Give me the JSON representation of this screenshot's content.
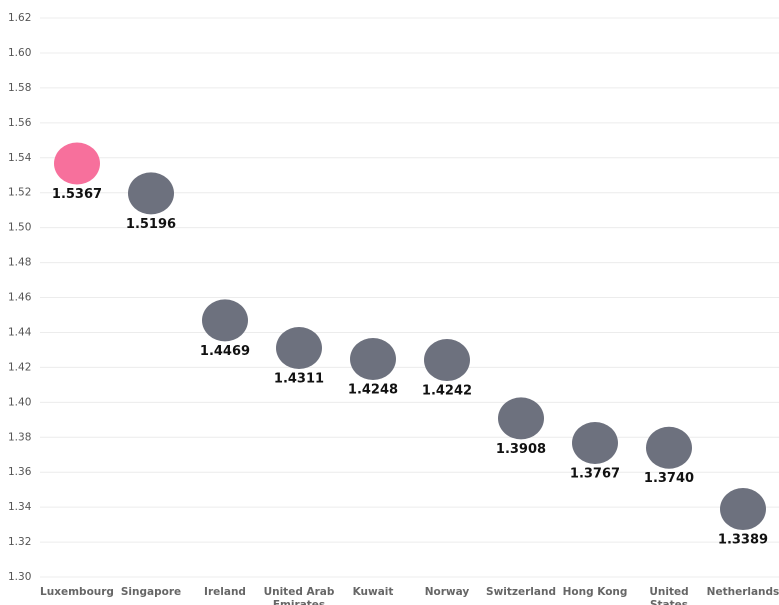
{
  "chart_data": {
    "type": "dot",
    "categories": [
      "Luxembourg",
      "Singapore",
      "Ireland",
      "United Arab Emirates",
      "Kuwait",
      "Norway",
      "Switzerland",
      "Hong Kong",
      "United States",
      "Netherlands"
    ],
    "values": [
      1.5367,
      1.5196,
      1.4469,
      1.4311,
      1.4248,
      1.4242,
      1.3908,
      1.3767,
      1.374,
      1.3389
    ],
    "value_labels": [
      "1.5367",
      "1.5196",
      "1.4469",
      "1.4311",
      "1.4248",
      "1.4242",
      "1.3908",
      "1.3767",
      "1.3740",
      "1.3389"
    ],
    "colors": [
      "#f7709c",
      "#6d717e",
      "#6d717e",
      "#6d717e",
      "#6d717e",
      "#6d717e",
      "#6d717e",
      "#6d717e",
      "#6d717e",
      "#6d717e"
    ],
    "ylim": [
      1.3,
      1.62
    ],
    "yticks": [
      {
        "value": 1.3,
        "label": "1.30"
      },
      1.32,
      1.34,
      1.36,
      1.38,
      {
        "value": 1.4,
        "label": "1.40"
      },
      1.42,
      1.44,
      1.46,
      1.48,
      {
        "value": 1.5,
        "label": "1.50"
      },
      1.52,
      1.54,
      1.56,
      1.58,
      {
        "value": 1.6,
        "label": "1.60"
      },
      1.62
    ],
    "grid": true
  }
}
